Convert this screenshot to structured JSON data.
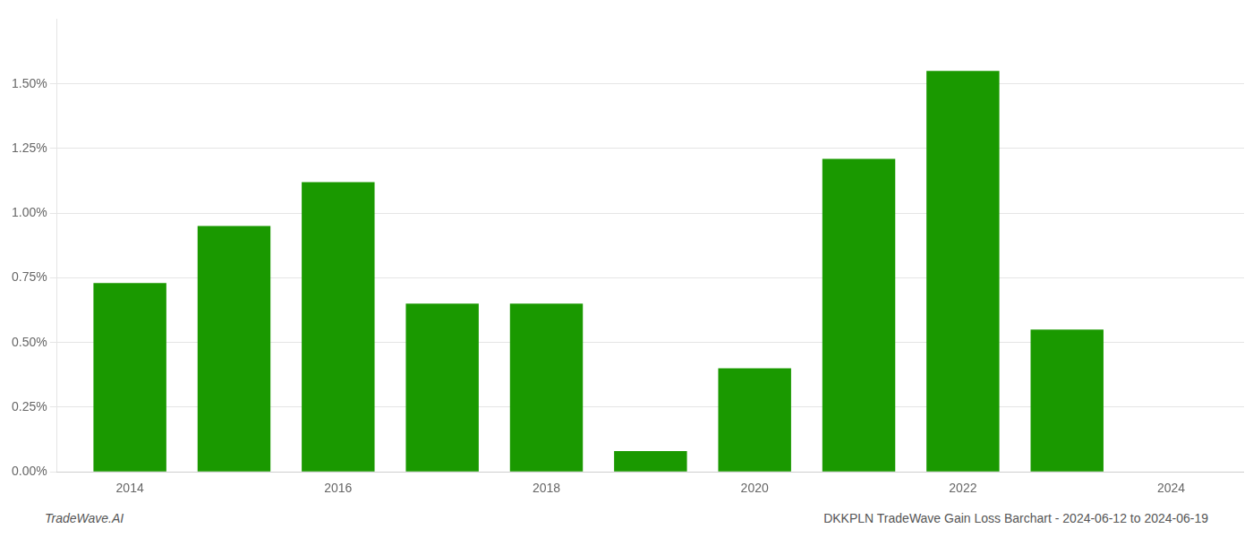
{
  "chart_data": {
    "type": "bar",
    "x": [
      2014,
      2015,
      2016,
      2017,
      2018,
      2019,
      2020,
      2021,
      2022,
      2023
    ],
    "values": [
      0.0073,
      0.0095,
      0.0112,
      0.0065,
      0.0065,
      0.0008,
      0.004,
      0.0121,
      0.0155,
      0.0055
    ],
    "color": "#1a9900",
    "xlim": [
      2013.3,
      2024.7
    ],
    "xticks": [
      2014,
      2016,
      2018,
      2020,
      2022,
      2024
    ],
    "ylim": [
      0,
      0.0175
    ],
    "yticks": [
      {
        "value": 0.0,
        "label": "0.00%"
      },
      {
        "value": 0.0025,
        "label": "0.25%"
      },
      {
        "value": 0.005,
        "label": "0.50%"
      },
      {
        "value": 0.0075,
        "label": "0.75%"
      },
      {
        "value": 0.01,
        "label": "1.00%"
      },
      {
        "value": 0.0125,
        "label": "1.25%"
      },
      {
        "value": 0.015,
        "label": "1.50%"
      }
    ],
    "grid": true,
    "annotations": [
      "TradeWave.AI",
      "DKKPLN TradeWave Gain Loss Barchart - 2024-06-12 to 2024-06-19"
    ]
  }
}
